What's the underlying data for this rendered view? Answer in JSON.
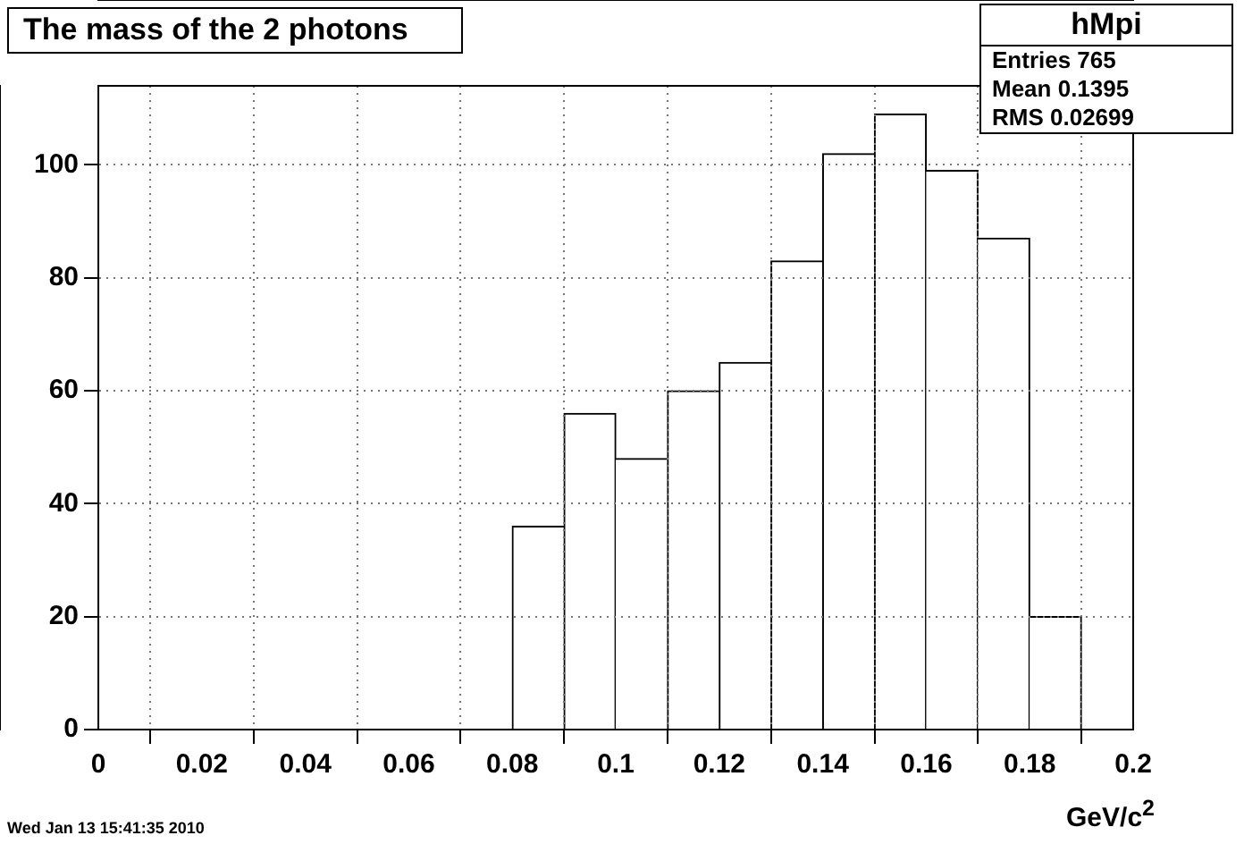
{
  "chart_data": {
    "type": "histogram",
    "title": "The mass of the 2 photons",
    "xlabel": "GeV/c$^{2}$",
    "bins": [
      0,
      0.01,
      0.02,
      0.03,
      0.04,
      0.05,
      0.06,
      0.07,
      0.08,
      0.09,
      0.1,
      0.11,
      0.12,
      0.13,
      0.14,
      0.15,
      0.16,
      0.17,
      0.18,
      0.19,
      0.2
    ],
    "values": [
      0,
      0,
      0,
      0,
      0,
      0,
      0,
      0,
      36,
      56,
      48,
      60,
      65,
      83,
      102,
      109,
      99,
      87,
      20,
      0
    ],
    "color": "#ffffff",
    "xlim": [
      0,
      0.2
    ],
    "xticks": [
      0,
      0.02,
      0.04,
      0.06,
      0.08,
      0.1,
      0.12,
      0.14,
      0.16,
      0.18,
      0.2
    ],
    "ylim": [
      0,
      114
    ],
    "yticks": [
      0,
      20,
      40,
      60,
      80,
      100
    ],
    "grid": true,
    "annotations": [
      "hMpi",
      "Entries 765",
      "Mean 0.1395",
      "RMS 0.02699",
      "Wed Jan 13 15:41:35 2010"
    ]
  }
}
